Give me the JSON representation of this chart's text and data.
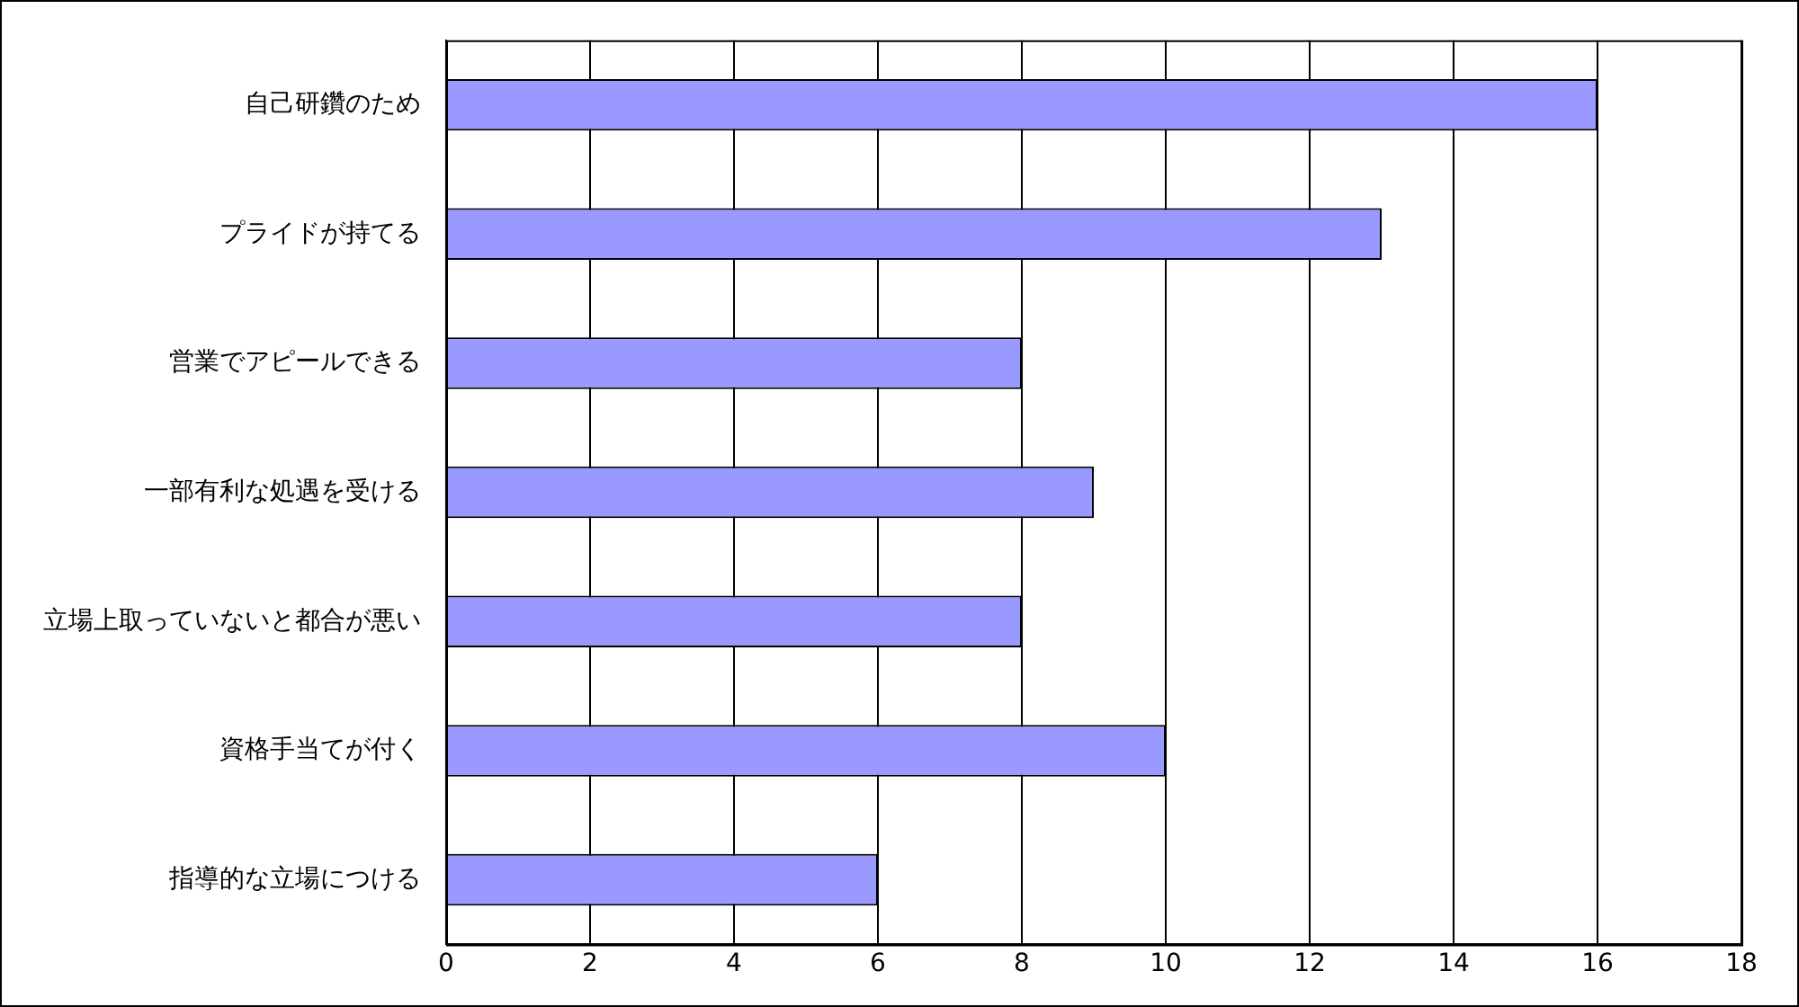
{
  "chart_data": {
    "type": "bar",
    "orientation": "horizontal",
    "categories": [
      "自己研鑽のため",
      "プライドが持てる",
      "営業でアピールできる",
      "一部有利な処遇を受ける",
      "立場上取っていないと都合が悪い",
      "資格手当てが付く",
      "指導的な立場につける"
    ],
    "values": [
      16,
      13,
      8,
      9,
      8,
      10,
      6
    ],
    "color": "#9999ff",
    "xlim": [
      0,
      18
    ],
    "xticks": [
      0,
      2,
      4,
      6,
      8,
      10,
      12,
      14,
      16,
      18
    ],
    "grid": "x",
    "legend": false
  }
}
